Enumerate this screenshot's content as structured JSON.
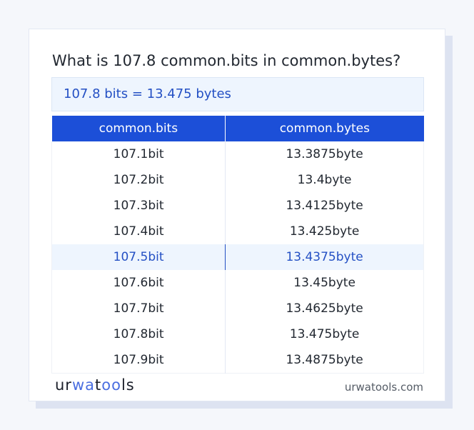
{
  "title": "What is 107.8 common.bits in common.bytes?",
  "result": "107.8 bits = 13.475 bytes",
  "table": {
    "headers": [
      "common.bits",
      "common.bytes"
    ],
    "rows": [
      [
        "107.1bit",
        "13.3875byte"
      ],
      [
        "107.2bit",
        "13.4byte"
      ],
      [
        "107.3bit",
        "13.4125byte"
      ],
      [
        "107.4bit",
        "13.425byte"
      ],
      [
        "107.5bit",
        "13.4375byte"
      ],
      [
        "107.6bit",
        "13.45byte"
      ],
      [
        "107.7bit",
        "13.4625byte"
      ],
      [
        "107.8bit",
        "13.475byte"
      ],
      [
        "107.9bit",
        "13.4875byte"
      ]
    ],
    "highlighted_row": 4
  },
  "footer": {
    "logo": "urwatools",
    "site": "urwatools.com"
  },
  "colors": {
    "accent": "#1c4fd8",
    "highlight_bg": "#eef5fe",
    "highlight_text": "#2450c4"
  }
}
